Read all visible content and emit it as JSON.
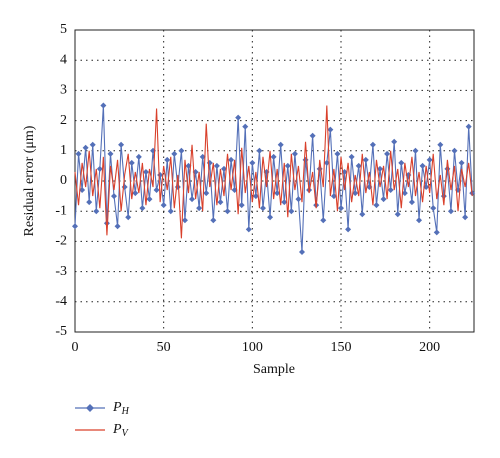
{
  "chart_data": {
    "type": "line",
    "x_label": "Sample",
    "y_label": "Residual error (μm)",
    "x": [
      0,
      2,
      4,
      6,
      8,
      10,
      12,
      14,
      16,
      18,
      20,
      22,
      24,
      26,
      28,
      30,
      32,
      34,
      36,
      38,
      40,
      42,
      44,
      46,
      48,
      50,
      52,
      54,
      56,
      58,
      60,
      62,
      64,
      66,
      68,
      70,
      72,
      74,
      76,
      78,
      80,
      82,
      84,
      86,
      88,
      90,
      92,
      94,
      96,
      98,
      100,
      102,
      104,
      106,
      108,
      110,
      112,
      114,
      116,
      118,
      120,
      122,
      124,
      126,
      128,
      130,
      132,
      134,
      136,
      138,
      140,
      142,
      144,
      146,
      148,
      150,
      152,
      154,
      156,
      158,
      160,
      162,
      164,
      166,
      168,
      170,
      172,
      174,
      176,
      178,
      180,
      182,
      184,
      186,
      188,
      190,
      192,
      194,
      196,
      198,
      200,
      202,
      204,
      206,
      208,
      210,
      212,
      214,
      216,
      218,
      220,
      222,
      224
    ],
    "series": [
      {
        "name": "PH",
        "color": "#5470b8",
        "marker": "diamond",
        "values": [
          -1.5,
          0.9,
          -0.3,
          1.1,
          -0.7,
          1.2,
          -1.0,
          0.4,
          2.5,
          -1.4,
          0.9,
          -0.5,
          -1.5,
          1.2,
          -0.2,
          -1.2,
          0.6,
          -0.4,
          0.8,
          -0.9,
          0.3,
          -0.6,
          1.0,
          -0.3,
          0.2,
          -0.8,
          0.7,
          -1.0,
          0.9,
          -0.2,
          1.0,
          -1.3,
          0.5,
          -0.6,
          0.3,
          -0.9,
          0.8,
          -0.4,
          0.6,
          -1.3,
          0.5,
          -0.7,
          0.4,
          -1.0,
          0.7,
          -0.3,
          2.1,
          -0.8,
          1.8,
          -1.6,
          0.6,
          -0.5,
          1.0,
          -0.9,
          0.3,
          -1.2,
          0.8,
          -0.4,
          1.2,
          -0.7,
          0.5,
          -1.0,
          0.9,
          -0.6,
          -2.35,
          0.7,
          -0.3,
          1.5,
          -0.8,
          0.4,
          -1.3,
          0.6,
          1.7,
          -0.5,
          0.9,
          -0.9,
          0.3,
          -1.6,
          0.8,
          -0.4,
          0.5,
          -1.1,
          0.7,
          -0.2,
          1.2,
          -0.8,
          0.4,
          -0.6,
          0.9,
          -0.3,
          1.3,
          -1.1,
          0.6,
          -0.4,
          0.2,
          -0.7,
          1.0,
          -1.3,
          0.5,
          -0.2,
          0.7,
          -0.9,
          -1.7,
          1.2,
          -0.5,
          0.4,
          -1.0,
          1.0,
          -0.3,
          0.6,
          -1.2,
          1.8,
          -0.4
        ]
      },
      {
        "name": "PV",
        "color": "#d9402b",
        "marker": "none",
        "values": [
          0.3,
          -0.8,
          0.6,
          -0.2,
          1.0,
          -0.5,
          0.4,
          -0.9,
          0.8,
          -1.8,
          0.5,
          -0.3,
          0.7,
          -1.0,
          0.2,
          0.9,
          -0.6,
          0.3,
          -0.4,
          0.6,
          -0.8,
          0.4,
          -0.2,
          2.4,
          -0.7,
          0.5,
          -0.3,
          0.8,
          -0.9,
          0.2,
          -1.9,
          0.7,
          -0.4,
          1.2,
          -0.6,
          0.3,
          -1.0,
          1.9,
          -0.2,
          0.6,
          -0.8,
          0.4,
          -0.5,
          0.9,
          -0.3,
          0.7,
          -1.1,
          1.1,
          -0.4,
          0.5,
          -0.7,
          0.3,
          -0.9,
          0.8,
          -0.2,
          1.0,
          -0.6,
          0.4,
          -0.8,
          0.6,
          -1.2,
          0.9,
          -0.3,
          0.5,
          -0.7,
          1.3,
          -0.4,
          0.3,
          -0.9,
          0.7,
          -0.2,
          2.5,
          -0.5,
          0.4,
          -1.0,
          0.8,
          -0.3,
          0.6,
          -0.7,
          0.2,
          -0.5,
          0.9,
          -0.4,
          0.3,
          -0.8,
          0.7,
          -0.2,
          0.5,
          -0.6,
          1.0,
          -0.3,
          0.4,
          -0.9,
          0.6,
          -0.2,
          0.8,
          -0.5,
          0.3,
          -0.7,
          0.5,
          -0.4,
          0.9,
          -0.6,
          0.2,
          -0.8,
          0.7,
          -0.3,
          0.5,
          -1.0,
          0.4,
          -0.2,
          0.6,
          -0.5
        ]
      }
    ],
    "xlim": [
      0,
      225
    ],
    "xticks": [
      0,
      50,
      100,
      150,
      200
    ],
    "ylim": [
      -5,
      5
    ],
    "yticks": [
      -5,
      -4,
      -3,
      -2,
      -1,
      0,
      1,
      2,
      3,
      4,
      5
    ],
    "grid": true,
    "legend": "bottom-left"
  }
}
